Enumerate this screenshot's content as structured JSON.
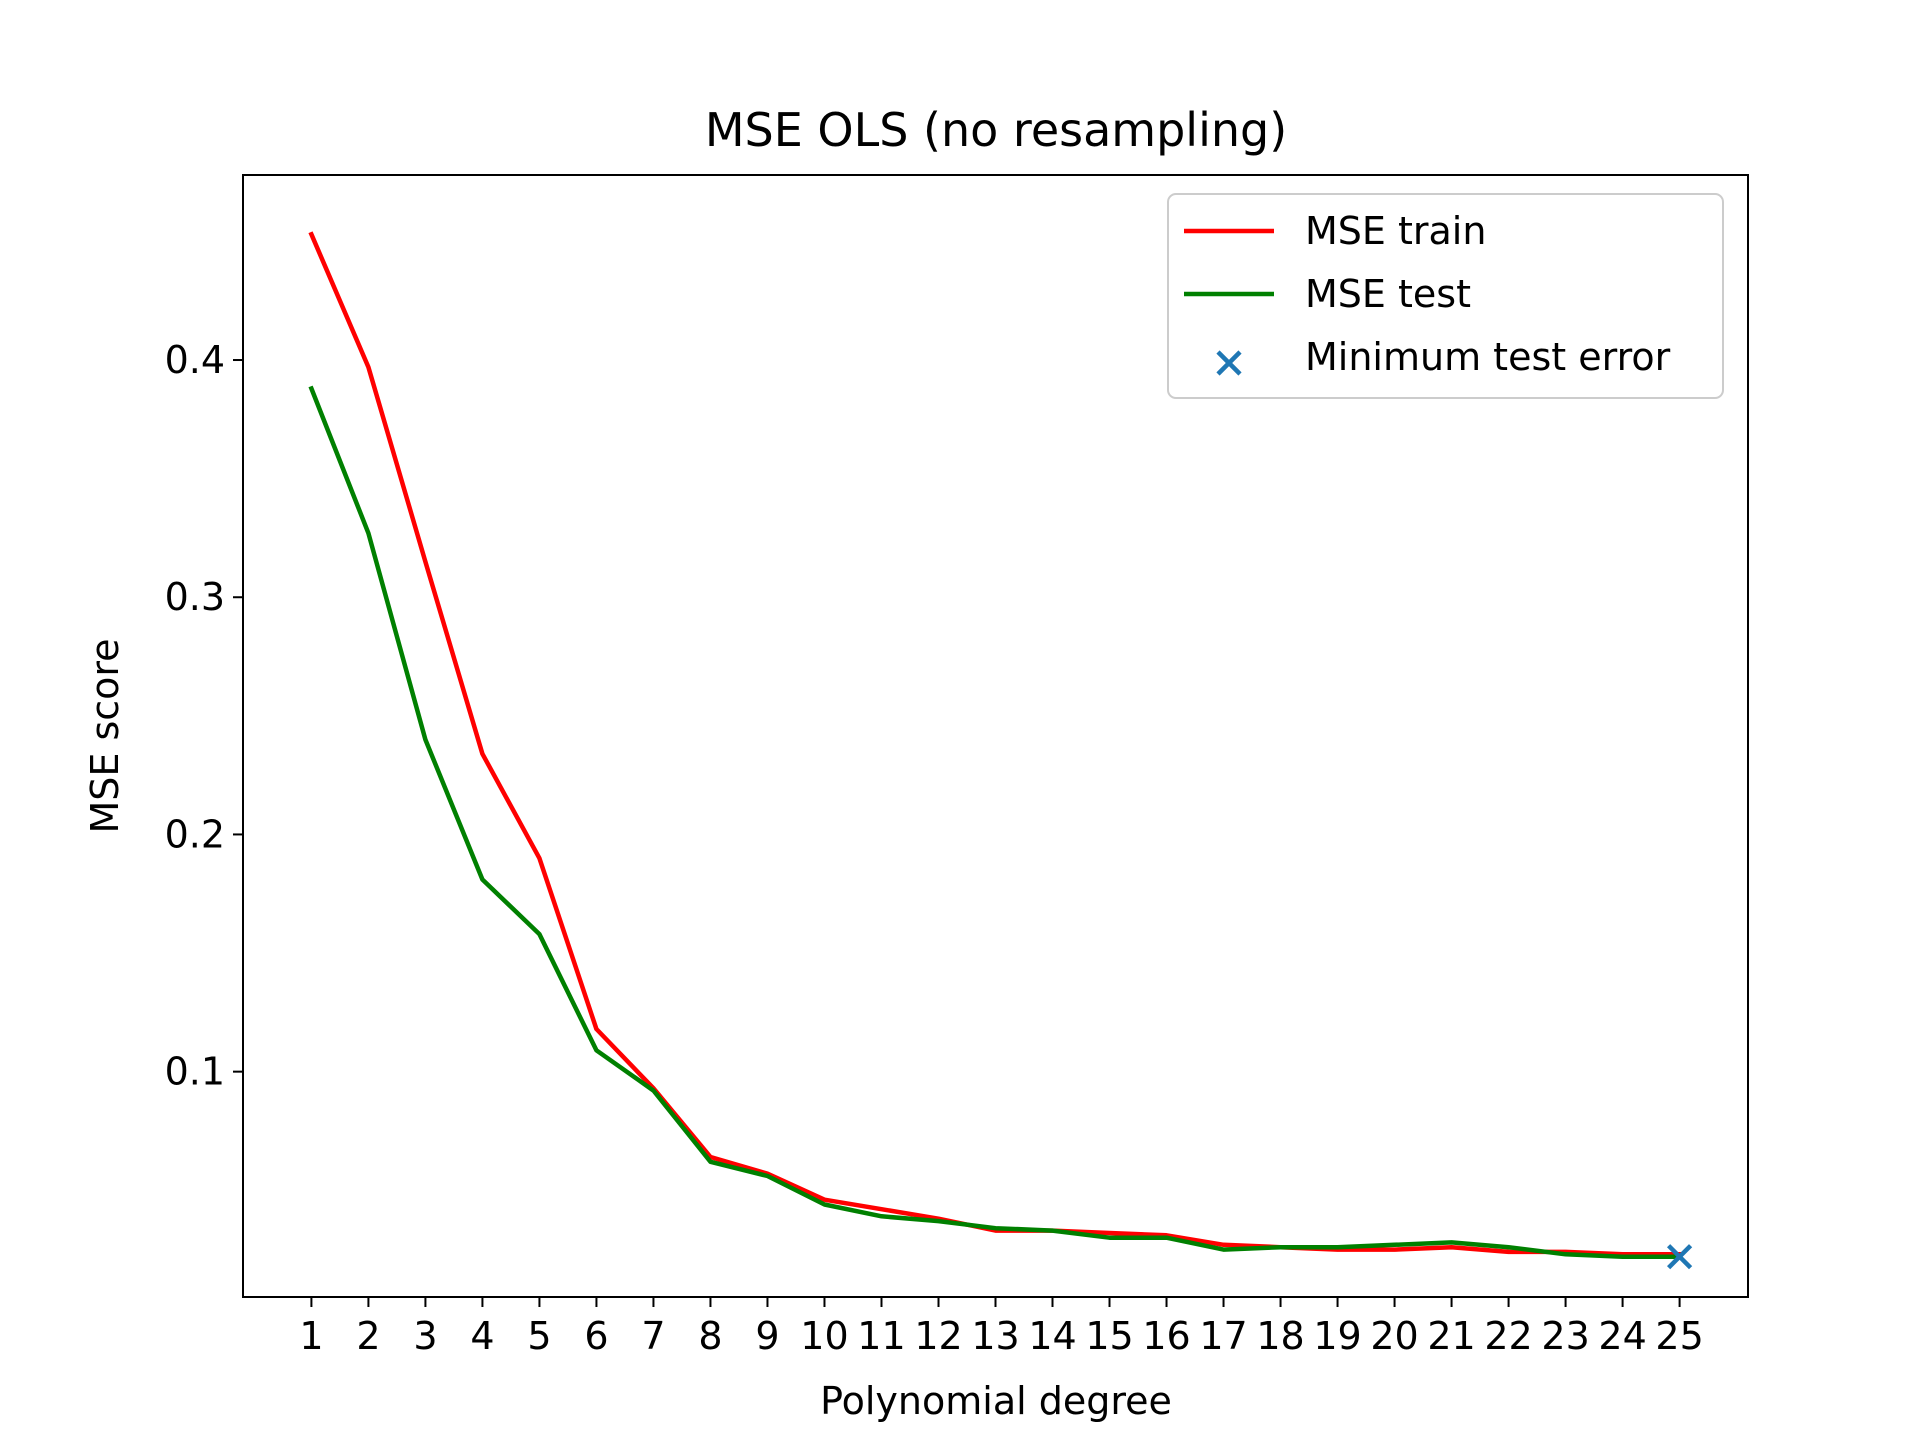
{
  "chart_data": {
    "type": "line",
    "title": "MSE OLS (no resampling)",
    "xlabel": "Polynomial degree",
    "ylabel": "MSE score",
    "x": [
      1,
      2,
      3,
      4,
      5,
      6,
      7,
      8,
      9,
      10,
      11,
      12,
      13,
      14,
      15,
      16,
      17,
      18,
      19,
      20,
      21,
      22,
      23,
      24,
      25
    ],
    "xlim": [
      -0.2,
      26.2
    ],
    "ylim": [
      0.005,
      0.478
    ],
    "xticks": [
      "1",
      "2",
      "3",
      "4",
      "5",
      "6",
      "7",
      "8",
      "9",
      "10",
      "11",
      "12",
      "13",
      "14",
      "15",
      "16",
      "17",
      "18",
      "19",
      "20",
      "21",
      "22",
      "23",
      "24",
      "25"
    ],
    "yticks": [
      0.1,
      0.2,
      0.3,
      0.4
    ],
    "ytick_labels": [
      "0.1",
      "0.2",
      "0.3",
      "0.4"
    ],
    "grid": false,
    "legend_position": "top-right",
    "series": [
      {
        "name": "MSE train",
        "color": "#ff0000",
        "values": [
          0.453,
          0.397,
          0.315,
          0.234,
          0.19,
          0.118,
          0.093,
          0.064,
          0.057,
          0.046,
          0.042,
          0.038,
          0.033,
          0.033,
          0.032,
          0.031,
          0.027,
          0.026,
          0.025,
          0.025,
          0.026,
          0.024,
          0.024,
          0.023,
          0.023
        ]
      },
      {
        "name": "MSE test",
        "color": "#008000",
        "values": [
          0.388,
          0.327,
          0.24,
          0.181,
          0.158,
          0.109,
          0.092,
          0.062,
          0.056,
          0.044,
          0.039,
          0.037,
          0.034,
          0.033,
          0.03,
          0.03,
          0.025,
          0.026,
          0.026,
          0.027,
          0.028,
          0.026,
          0.023,
          0.022,
          0.022
        ]
      }
    ],
    "markers": [
      {
        "name": "Minimum test error",
        "color": "#1f77b4",
        "symbol": "x",
        "x": 25,
        "y": 0.022
      }
    ]
  }
}
